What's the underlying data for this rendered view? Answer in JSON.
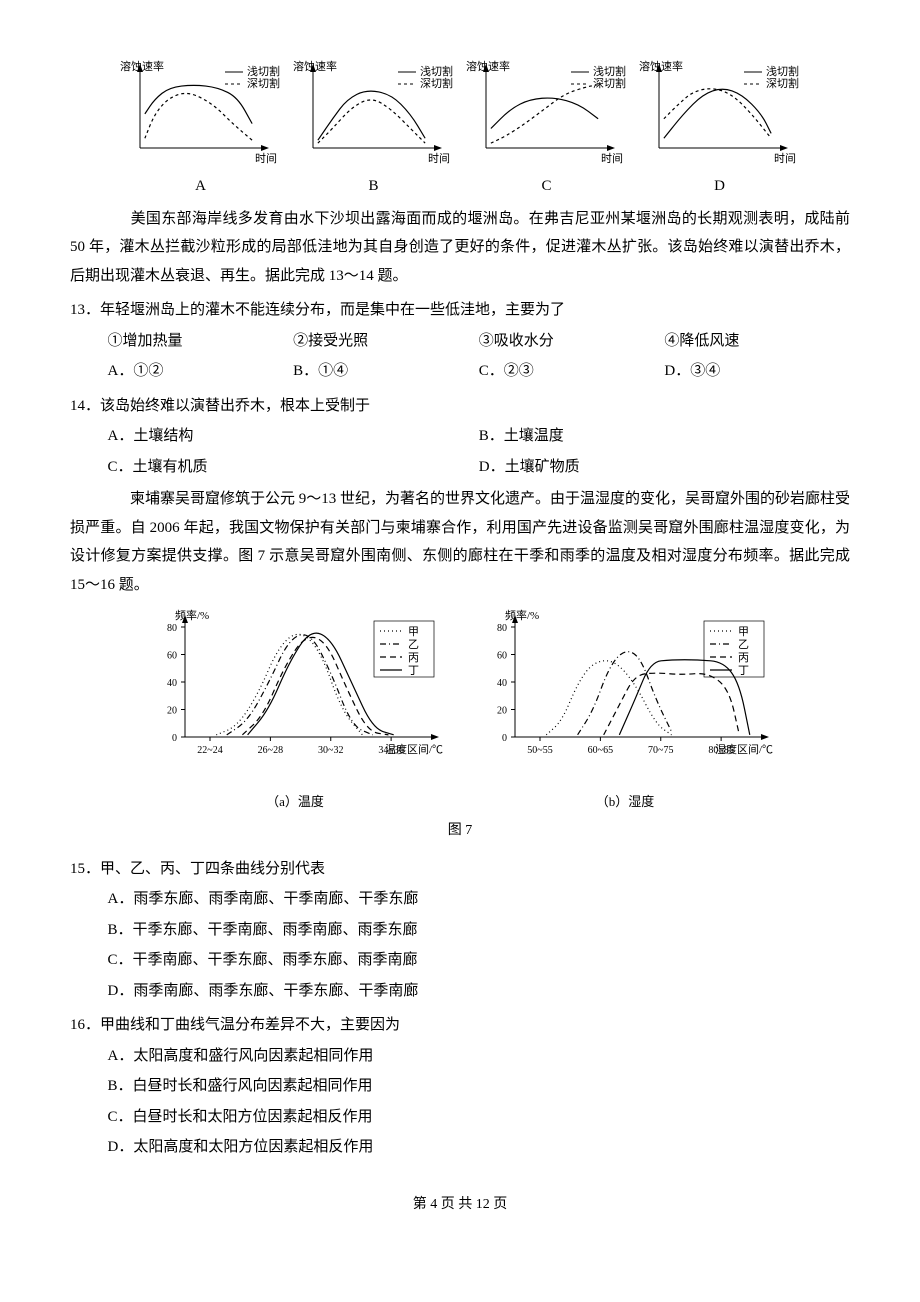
{
  "topCharts": {
    "yLabel": "溶蚀速率",
    "xLabel": "时间",
    "legend": {
      "solid": "浅切割",
      "dashed": "深切割"
    },
    "panels": [
      {
        "label": "A",
        "solid": [
          [
            5,
            45
          ],
          [
            15,
            30
          ],
          [
            30,
            18
          ],
          [
            55,
            15
          ],
          [
            80,
            18
          ],
          [
            100,
            28
          ],
          [
            115,
            55
          ]
        ],
        "dashed": [
          [
            5,
            70
          ],
          [
            15,
            45
          ],
          [
            30,
            28
          ],
          [
            50,
            22
          ],
          [
            75,
            35
          ],
          [
            95,
            55
          ],
          [
            115,
            72
          ]
        ]
      },
      {
        "label": "B",
        "solid": [
          [
            5,
            72
          ],
          [
            20,
            50
          ],
          [
            35,
            30
          ],
          [
            55,
            20
          ],
          [
            80,
            25
          ],
          [
            100,
            45
          ],
          [
            115,
            70
          ]
        ],
        "dashed": [
          [
            5,
            75
          ],
          [
            20,
            60
          ],
          [
            40,
            38
          ],
          [
            60,
            28
          ],
          [
            80,
            40
          ],
          [
            100,
            60
          ],
          [
            115,
            75
          ]
        ]
      },
      {
        "label": "C",
        "solid": [
          [
            5,
            60
          ],
          [
            25,
            40
          ],
          [
            45,
            30
          ],
          [
            70,
            28
          ],
          [
            95,
            35
          ],
          [
            115,
            50
          ]
        ],
        "dashed": [
          [
            5,
            75
          ],
          [
            20,
            68
          ],
          [
            40,
            55
          ],
          [
            60,
            40
          ],
          [
            80,
            25
          ],
          [
            100,
            18
          ],
          [
            115,
            15
          ]
        ]
      },
      {
        "label": "D",
        "solid": [
          [
            5,
            70
          ],
          [
            25,
            45
          ],
          [
            45,
            25
          ],
          [
            65,
            18
          ],
          [
            85,
            25
          ],
          [
            105,
            45
          ],
          [
            115,
            65
          ]
        ],
        "dashed": [
          [
            5,
            50
          ],
          [
            20,
            35
          ],
          [
            35,
            22
          ],
          [
            55,
            18
          ],
          [
            75,
            25
          ],
          [
            95,
            45
          ],
          [
            115,
            70
          ]
        ]
      }
    ],
    "axisColor": "#000",
    "strokeWidth": 1.2
  },
  "passage1": "　　美国东部海岸线多发育由水下沙坝出露海面而成的堰洲岛。在弗吉尼亚州某堰洲岛的长期观测表明，成陆前 50 年，灌木丛拦截沙粒形成的局部低洼地为其自身创造了更好的条件，促进灌木丛扩张。该岛始终难以演替出乔木，后期出现灌木丛衰退、再生。据此完成 13～14 题。",
  "q13": {
    "stem": "13．年轻堰洲岛上的灌木不能连续分布，而是集中在一些低洼地，主要为了",
    "items": [
      "①增加热量",
      "②接受光照",
      "③吸收水分",
      "④降低风速"
    ],
    "opts": [
      "A．①②",
      "B．①④",
      "C．②③",
      "D．③④"
    ]
  },
  "q14": {
    "stem": "14．该岛始终难以演替出乔木，根本上受制于",
    "opts": [
      "A．土壤结构",
      "B．土壤温度",
      "C．土壤有机质",
      "D．土壤矿物质"
    ]
  },
  "passage2": "　　柬埔寨吴哥窟修筑于公元 9～13 世纪，为著名的世界文化遗产。由于温湿度的变化，吴哥窟外围的砂岩廊柱受损严重。自 2006 年起，我国文物保护有关部门与柬埔寨合作，利用国产先进设备监测吴哥窟外围廊柱温湿度变化，为设计修复方案提供支撑。图 7 示意吴哥窟外围南侧、东侧的廊柱在干季和雨季的温度及相对湿度分布频率。据此完成 15～16 题。",
  "fig7": {
    "yLabel": "频率/%",
    "caption": "图 7",
    "legend": [
      "甲",
      "乙",
      "丙",
      "丁"
    ],
    "panelA": {
      "sub": "（a）温度",
      "xLabel": "温度区间/℃",
      "ticks": [
        "22~24",
        "26~28",
        "30~32",
        "34~36"
      ],
      "yTicks": [
        0,
        20,
        40,
        60,
        80
      ],
      "series": {
        "jia": [
          [
            30,
            118
          ],
          [
            50,
            110
          ],
          [
            70,
            80
          ],
          [
            90,
            35
          ],
          [
            110,
            20
          ],
          [
            130,
            40
          ],
          [
            150,
            95
          ],
          [
            170,
            118
          ]
        ],
        "yi": [
          [
            40,
            118
          ],
          [
            60,
            105
          ],
          [
            80,
            70
          ],
          [
            100,
            28
          ],
          [
            120,
            22
          ],
          [
            140,
            60
          ],
          [
            160,
            110
          ],
          [
            180,
            118
          ]
        ],
        "bing": [
          [
            55,
            118
          ],
          [
            75,
            100
          ],
          [
            95,
            55
          ],
          [
            115,
            25
          ],
          [
            135,
            30
          ],
          [
            155,
            75
          ],
          [
            175,
            115
          ],
          [
            195,
            118
          ]
        ],
        "ding": [
          [
            60,
            118
          ],
          [
            80,
            95
          ],
          [
            100,
            50
          ],
          [
            120,
            20
          ],
          [
            140,
            28
          ],
          [
            160,
            70
          ],
          [
            180,
            112
          ],
          [
            200,
            118
          ]
        ]
      }
    },
    "panelB": {
      "sub": "（b）湿度",
      "xLabel": "湿度区间/℃",
      "ticks": [
        "50~55",
        "60~65",
        "70~75",
        "80~85"
      ],
      "yTicks": [
        0,
        20,
        40,
        60,
        80
      ],
      "series": {
        "jia": [
          [
            30,
            118
          ],
          [
            45,
            105
          ],
          [
            60,
            70
          ],
          [
            75,
            50
          ],
          [
            95,
            48
          ],
          [
            115,
            70
          ],
          [
            135,
            108
          ],
          [
            150,
            118
          ]
        ],
        "yi": [
          [
            60,
            118
          ],
          [
            75,
            95
          ],
          [
            90,
            55
          ],
          [
            105,
            38
          ],
          [
            120,
            45
          ],
          [
            135,
            85
          ],
          [
            150,
            115
          ]
        ],
        "bing": [
          [
            85,
            118
          ],
          [
            100,
            90
          ],
          [
            115,
            62
          ],
          [
            135,
            60
          ],
          [
            160,
            62
          ],
          [
            185,
            60
          ],
          [
            205,
            75
          ],
          [
            215,
            118
          ]
        ],
        "ding": [
          [
            100,
            118
          ],
          [
            115,
            85
          ],
          [
            130,
            50
          ],
          [
            150,
            48
          ],
          [
            175,
            48
          ],
          [
            200,
            50
          ],
          [
            215,
            70
          ],
          [
            225,
            118
          ]
        ]
      }
    },
    "colors": {
      "axis": "#000"
    }
  },
  "q15": {
    "stem": "15．甲、乙、丙、丁四条曲线分别代表",
    "opts": [
      "A．雨季东廊、雨季南廊、干季南廊、干季东廊",
      "B．干季东廊、干季南廊、雨季南廊、雨季东廊",
      "C．干季南廊、干季东廊、雨季东廊、雨季南廊",
      "D．雨季南廊、雨季东廊、干季东廊、干季南廊"
    ]
  },
  "q16": {
    "stem": "16．甲曲线和丁曲线气温分布差异不大，主要因为",
    "opts": [
      "A．太阳高度和盛行风向因素起相同作用",
      "B．白昼时长和盛行风向因素起相同作用",
      "C．白昼时长和太阳方位因素起相反作用",
      "D．太阳高度和太阳方位因素起相反作用"
    ]
  },
  "footer": {
    "prefix": "第 ",
    "page": "4",
    "mid": " 页 共 ",
    "total": "12",
    "suffix": " 页"
  }
}
